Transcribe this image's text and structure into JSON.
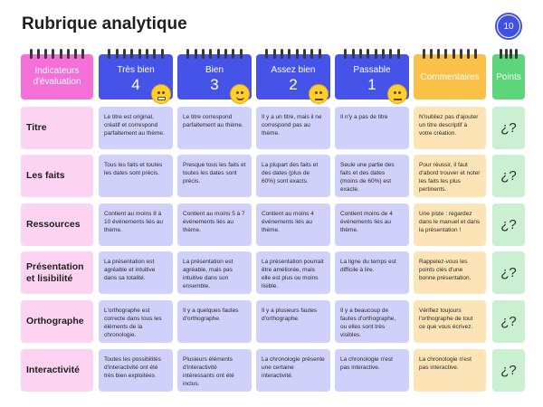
{
  "title": "Rubrique analytique",
  "page_number": "10",
  "headers": {
    "indicators": "Indicateurs d'évaluation",
    "levels": [
      {
        "label": "Très bien",
        "number": "4",
        "emoji": "grimace-emoji"
      },
      {
        "label": "Bien",
        "number": "3",
        "emoji": "smile-emoji"
      },
      {
        "label": "Assez bien",
        "number": "2",
        "emoji": "neutral-emoji"
      },
      {
        "label": "Passable",
        "number": "1",
        "emoji": "unamused-emoji"
      }
    ],
    "comments": "Commentaires",
    "points": "Points"
  },
  "rows": [
    {
      "indicator": "Titre",
      "levels": [
        "Le titre est original, créatif et correspond parfaitement au thème.",
        "Le titre correspond parfaitement au thème.",
        "Il y a un titre, mais il ne correspond pas au thème.",
        "Il n'y a pas de titre"
      ],
      "comment": "N'oubliez pas d'ajouter un titre descriptif à votre création.",
      "points": "¿?"
    },
    {
      "indicator": "Les faits",
      "levels": [
        "Tous les faits et toutes les dates sont précis.",
        "Presque tous les faits et toutes les dates sont précis.",
        "La plupart des faits et des dates (plus de 60%) sont exacts.",
        "Seule une partie des faits et des dates (moins de 60%) est exacte."
      ],
      "comment": "Pour réussir, il faut d'abord trouver et noter les faits les plus pertinents.",
      "points": "¿?"
    },
    {
      "indicator": "Ressources",
      "levels": [
        "Contient au moins 8 à 10 événements liés au thème.",
        "Contient au moins 5 à 7 événements liés au thème.",
        "Contient au moins 4 événements liés au thème.",
        "Contient moins de 4 événements liés au thème."
      ],
      "comment": "Une piste : regardez dans le manuel et dans la présentation !",
      "points": "¿?"
    },
    {
      "indicator": "Présentation et lisibilité",
      "levels": [
        "La présentation est agréable et intuitive dans sa totalité.",
        "La présentation est agréable, mais pas intuitive dans son ensemble.",
        "La présentation pourrait être améliorée, mais elle est plus ou moins lisible.",
        "La ligne du temps est difficile à lire."
      ],
      "comment": "Rappelez-vous les points clés d'une bonne présentation.",
      "points": "¿?"
    },
    {
      "indicator": "Orthographe",
      "levels": [
        "L'orthographe est correcte dans tous les éléments de la chronologie.",
        "Il y a quelques fautes d'orthographe.",
        "Il y a plusieurs fautes d'orthographe.",
        "Il y a beaucoup de fautes d'orthographe, ou elles sont très visibles."
      ],
      "comment": "Vérifiez toujours l'orthographe de tout ce que vous écrivez.",
      "points": "¿?"
    },
    {
      "indicator": "Interactivité",
      "levels": [
        "Toutes les possibilités d'interactivité ont été très bien exploitées",
        "Plusieurs éléments d'interactivité intéressants ont été inclus.",
        "La chronologie présente une certaine interactivité.",
        "La chronologie n'est pas interactive."
      ],
      "comment": "La chronologie n'est pas interactive.",
      "points": "¿?"
    }
  ]
}
